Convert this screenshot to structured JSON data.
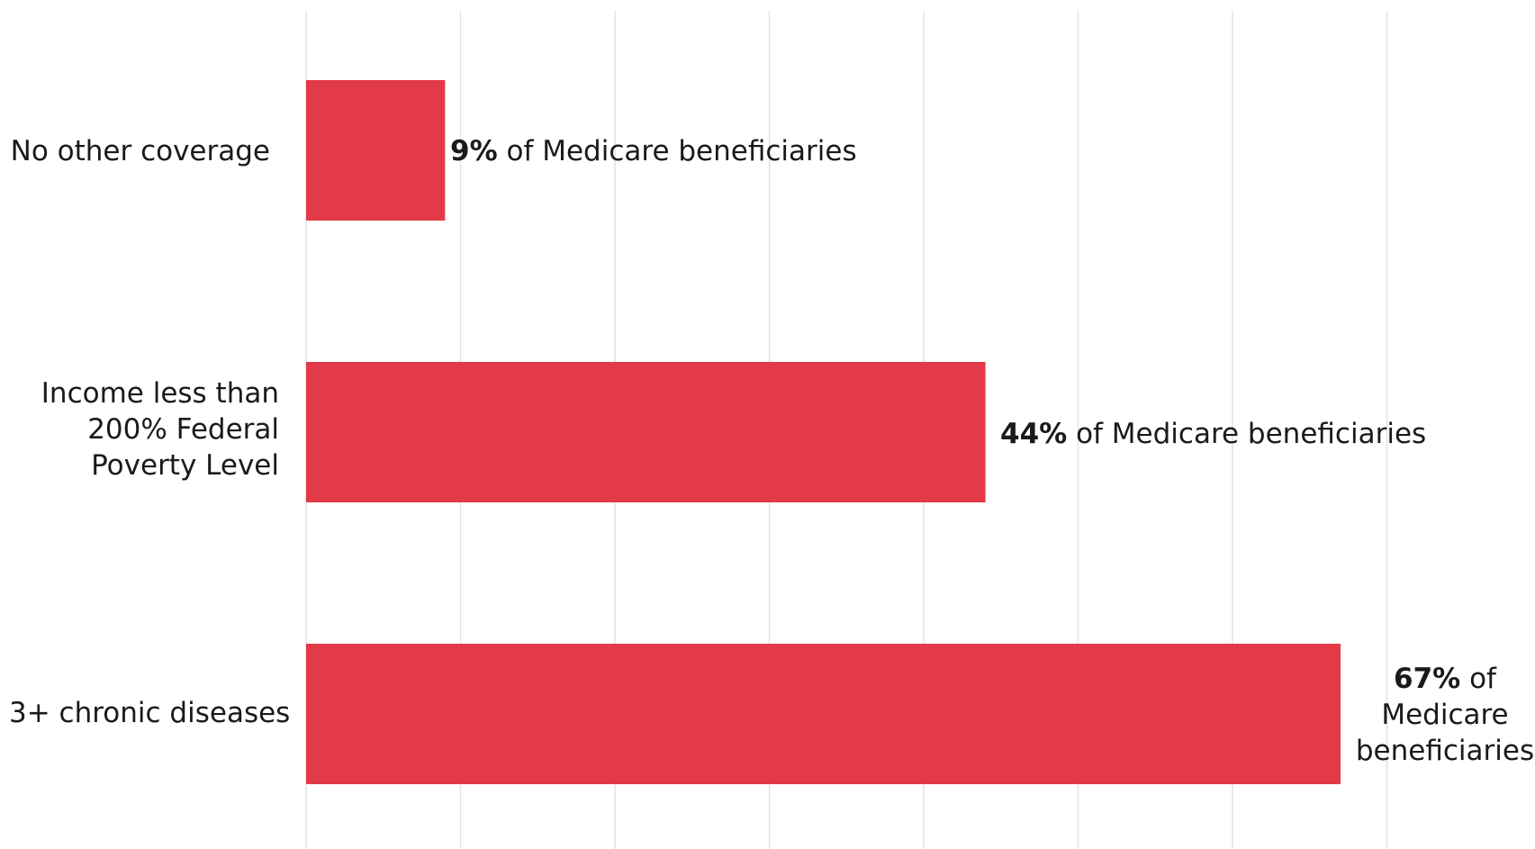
{
  "chart_data": {
    "type": "bar",
    "orientation": "horizontal",
    "categories": [
      "No other coverage",
      "Income less than 200% Federal Poverty Level",
      "3+ chronic diseases"
    ],
    "values": [
      9,
      44,
      67
    ],
    "value_unit": "%",
    "value_label_suffix": "of Medicare beneficiaries",
    "xlim": [
      0,
      70
    ],
    "grid": true,
    "bar_color": "#e23a47",
    "gridline_color": "#e3e3e3",
    "title": "",
    "xlabel": "",
    "ylabel": ""
  }
}
